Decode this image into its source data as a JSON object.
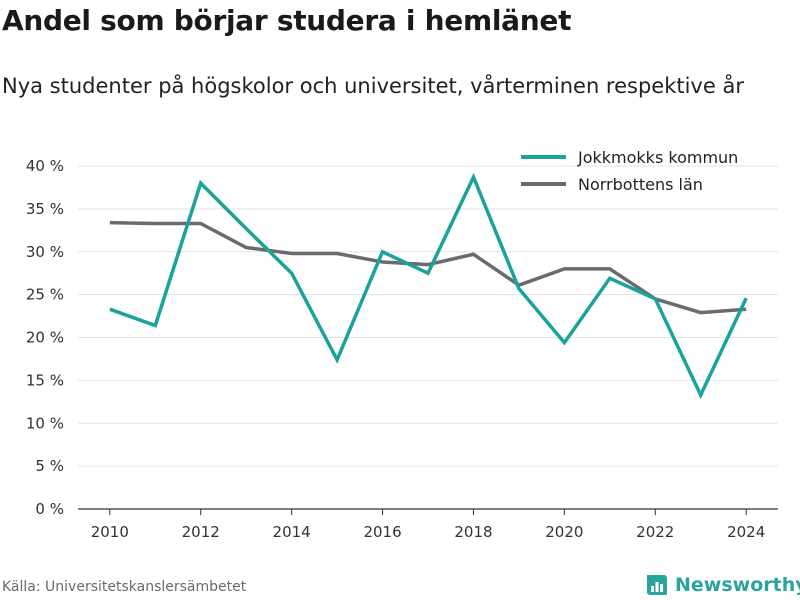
{
  "title": "Andel som börjar studera i hemlänet",
  "subtitle": "Nya studenter på högskolor och universitet, vårterminen respektive år",
  "source": "Källa: Universitetskanslersämbetet",
  "brand": {
    "name": "Newsworthy",
    "icon": "newsworthy-logo-icon",
    "color": "#2aa59b"
  },
  "chart_data": {
    "type": "line",
    "title": "",
    "xlabel": "",
    "ylabel": "",
    "x": [
      2010,
      2011,
      2012,
      2013,
      2014,
      2015,
      2016,
      2017,
      2018,
      2019,
      2020,
      2021,
      2022,
      2023,
      2024
    ],
    "xlim": [
      2009.3,
      2024.7
    ],
    "ylim": [
      0,
      40
    ],
    "x_ticks": [
      2010,
      2012,
      2014,
      2016,
      2018,
      2020,
      2022,
      2024
    ],
    "x_tick_labels": [
      "2010",
      "2012",
      "2014",
      "2016",
      "2018",
      "2020",
      "2022",
      "2024"
    ],
    "y_ticks": [
      0,
      5,
      10,
      15,
      20,
      25,
      30,
      35,
      40
    ],
    "y_tick_labels": [
      "0 %",
      "5 %",
      "10 %",
      "15 %",
      "20 %",
      "25 %",
      "30 %",
      "35 %",
      "40 %"
    ],
    "grid": "horizontal",
    "legend_position": "top-right",
    "series": [
      {
        "name": "Jokkmokks kommun",
        "color": "#1aa39a",
        "values": [
          23.3,
          21.4,
          38.0,
          32.7,
          27.5,
          17.4,
          30.0,
          27.5,
          38.7,
          25.7,
          19.4,
          26.9,
          24.5,
          13.3,
          24.6
        ]
      },
      {
        "name": "Norrbottens län",
        "color": "#6b6a70",
        "values": [
          33.4,
          33.3,
          33.3,
          30.5,
          29.8,
          29.8,
          28.8,
          28.5,
          29.7,
          26.1,
          28.0,
          28.0,
          24.5,
          22.9,
          23.3
        ]
      }
    ]
  }
}
